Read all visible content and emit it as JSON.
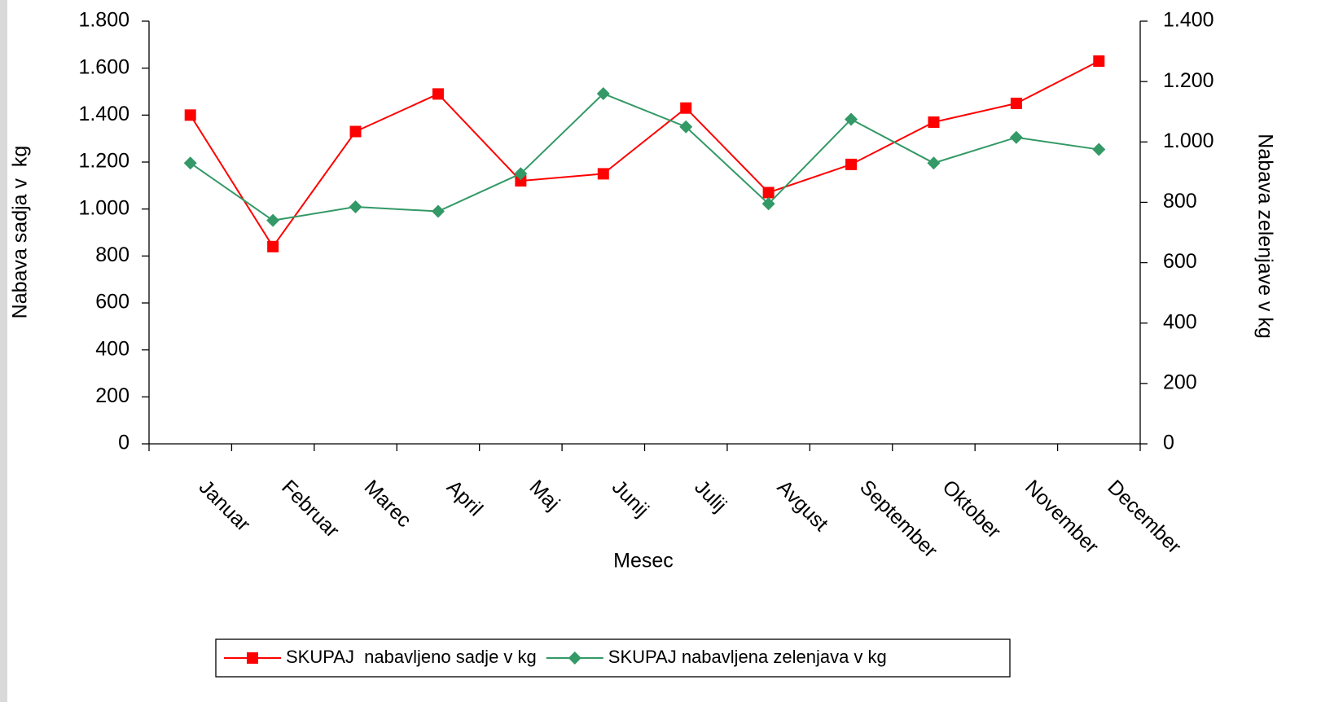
{
  "chart_data": {
    "type": "line",
    "x_label": "Mesec",
    "y_label": "Nabava sadja v  kg",
    "y2_label": "Nabava zelenjave v kg",
    "categories": [
      "Januar",
      "Februar",
      "Marec",
      "April",
      "Maj",
      "Junij",
      "Julij",
      "Avgust",
      "September",
      "Oktober",
      "November",
      "December"
    ],
    "series": [
      {
        "name": "SKUPAJ  nabavljeno sadje v kg",
        "color": "#ff0000",
        "marker": "square",
        "values": [
          1400,
          840,
          1330,
          1490,
          1120,
          1150,
          1430,
          1070,
          1190,
          1370,
          1450,
          1630
        ]
      },
      {
        "name": "SKUPAJ nabavljena zelenjava v kg",
        "color": "#339966",
        "marker": "diamond",
        "axis": "y2",
        "values": [
          930,
          740,
          785,
          770,
          895,
          1160,
          1050,
          795,
          1075,
          930,
          1015,
          975
        ]
      }
    ],
    "ylim": [
      0,
      1800
    ],
    "yticks": [
      0,
      200,
      400,
      600,
      800,
      {
        "value": 1000,
        "label": "1.000"
      },
      {
        "value": 1200,
        "label": "1.200"
      },
      {
        "value": 1400,
        "label": "1.400"
      },
      {
        "value": 1600,
        "label": "1.600"
      },
      {
        "value": 1800,
        "label": "1.800"
      }
    ],
    "y2lim": [
      0,
      1400
    ],
    "y2ticks": [
      0,
      200,
      400,
      600,
      800,
      {
        "value": 1000,
        "label": "1.000"
      },
      {
        "value": 1200,
        "label": "1.200"
      },
      {
        "value": 1400,
        "label": "1.400"
      }
    ],
    "legend": "bottom",
    "grid": false
  }
}
